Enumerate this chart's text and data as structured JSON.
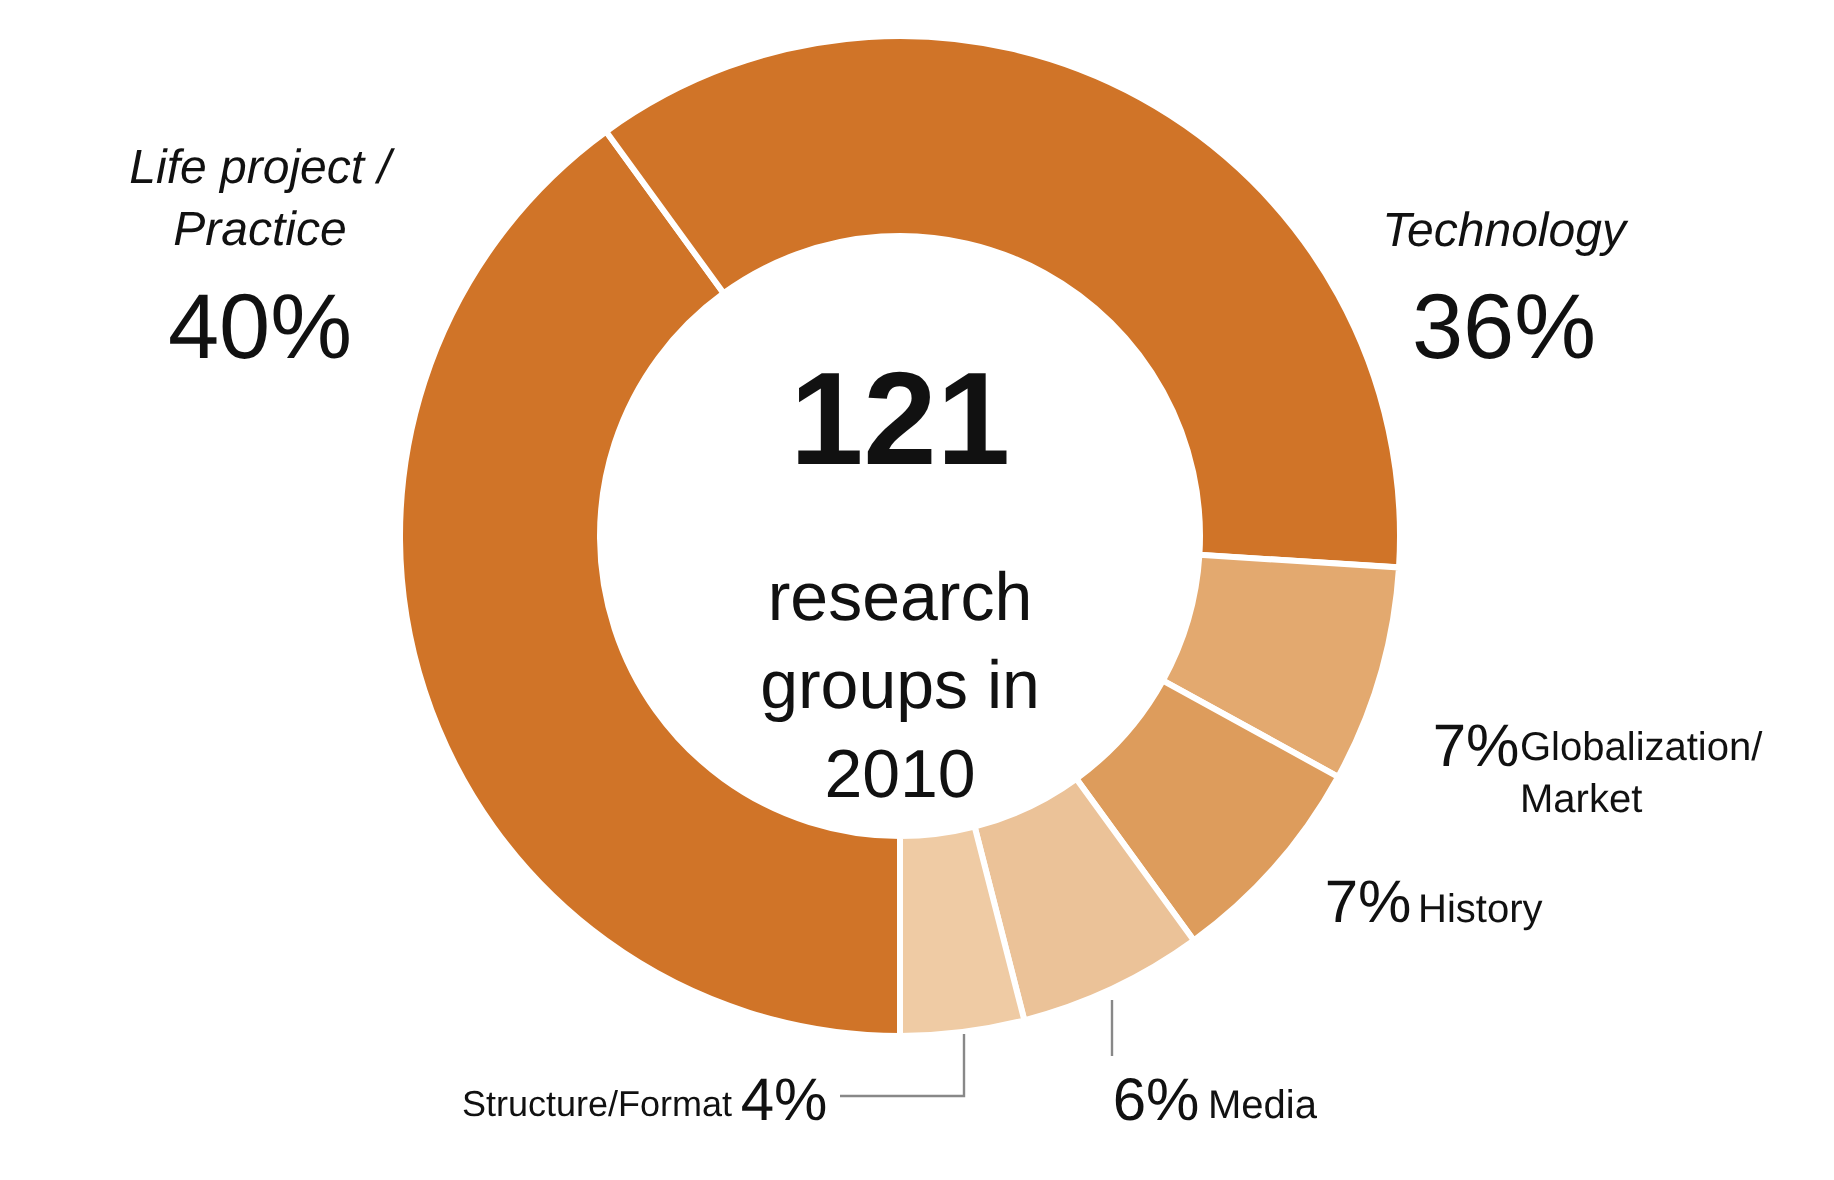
{
  "chart_data": {
    "type": "donut",
    "categories": [
      "Life project / Practice",
      "Technology",
      "Globalization/ Market",
      "History",
      "Media",
      "Structure/Format"
    ],
    "values": [
      40,
      36,
      7,
      7,
      6,
      4
    ],
    "colors": [
      "#d07428",
      "#d07428",
      "#e3a96f",
      "#dd9c5c",
      "#ebc298",
      "#efcba4"
    ],
    "value_labels": [
      "40%",
      "36%",
      "7%",
      "7%",
      "6%",
      "4%"
    ],
    "annotations": [
      "121",
      "research groups in 2010"
    ]
  }
}
